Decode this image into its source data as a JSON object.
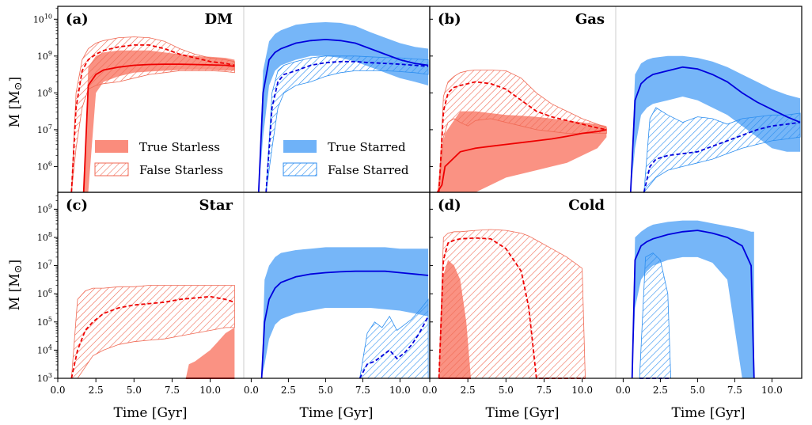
{
  "figure": {
    "ylabel": "M [M",
    "ylabel_sub": "⊙",
    "ylabel_close": "]",
    "xlabel": "Time [Gyr]"
  },
  "legend": {
    "true_starless": "True Starless",
    "false_starless": "False Starless",
    "true_starred": "True Starred",
    "false_starred": "False Starred"
  },
  "colors": {
    "red_line": "#ee0000",
    "red_fill": "#fa8c7c",
    "blue_line": "#0000dd",
    "blue_fill": "#6fb2f8",
    "divider": "#cccccc"
  },
  "chart_data": [
    {
      "type": "area",
      "panel": "a",
      "label": "(a)",
      "title": "DM",
      "y_exponent_range": [
        5.3,
        10.35
      ],
      "y_ticks": [
        6,
        7,
        8,
        9,
        10
      ],
      "starless": {
        "x_range": [
          0,
          12.2
        ],
        "x_ticks": [
          0.0,
          2.5,
          5.0,
          7.5,
          10.0
        ],
        "true_x": [
          1.7,
          2.0,
          2.5,
          3,
          4,
          5,
          6,
          7,
          8,
          9,
          10,
          11,
          11.6
        ],
        "true_median": [
          5.3,
          8.2,
          8.5,
          8.62,
          8.7,
          8.75,
          8.77,
          8.78,
          8.78,
          8.77,
          8.76,
          8.75,
          8.72
        ],
        "true_low": [
          5.3,
          5.3,
          8.0,
          8.3,
          8.45,
          8.55,
          8.58,
          8.6,
          8.62,
          8.62,
          8.62,
          8.6,
          8.6
        ],
        "true_high": [
          5.3,
          8.7,
          9.0,
          9.1,
          9.15,
          9.15,
          9.15,
          9.1,
          9.05,
          9.0,
          8.98,
          8.95,
          8.9
        ],
        "false_x": [
          0.9,
          1.2,
          1.6,
          2.0,
          2.5,
          3,
          4,
          5,
          6,
          7,
          8,
          9,
          10,
          11,
          11.6
        ],
        "false_median": [
          5.3,
          7.6,
          8.6,
          8.9,
          9.05,
          9.15,
          9.25,
          9.3,
          9.3,
          9.2,
          9.05,
          8.95,
          8.85,
          8.8,
          8.75
        ],
        "false_low": [
          5.3,
          6.5,
          7.6,
          8.1,
          8.2,
          8.25,
          8.3,
          8.4,
          8.5,
          8.55,
          8.6,
          8.6,
          8.6,
          8.58,
          8.55
        ],
        "false_high": [
          5.3,
          8.0,
          8.9,
          9.2,
          9.35,
          9.42,
          9.5,
          9.52,
          9.5,
          9.4,
          9.2,
          9.05,
          8.95,
          8.9,
          8.85
        ]
      },
      "starred": {
        "x_range": [
          -0.5,
          12.0
        ],
        "x_ticks": [
          0.0,
          2.5,
          5.0,
          7.5,
          10.0
        ],
        "true_x": [
          0.5,
          0.8,
          1.2,
          1.6,
          2.0,
          3,
          4,
          5,
          6,
          7,
          8,
          9,
          10,
          11,
          11.9
        ],
        "true_median": [
          5.3,
          8.0,
          8.9,
          9.1,
          9.2,
          9.35,
          9.42,
          9.45,
          9.42,
          9.35,
          9.2,
          9.05,
          8.9,
          8.8,
          8.75
        ],
        "true_low": [
          5.3,
          6.8,
          8.2,
          8.6,
          8.75,
          8.9,
          9.0,
          9.0,
          8.95,
          8.85,
          8.7,
          8.55,
          8.4,
          8.3,
          8.2
        ],
        "true_high": [
          5.3,
          8.6,
          9.4,
          9.6,
          9.7,
          9.85,
          9.9,
          9.92,
          9.9,
          9.82,
          9.65,
          9.5,
          9.35,
          9.25,
          9.2
        ],
        "false_x": [
          1.0,
          1.4,
          1.8,
          2.2,
          3,
          4,
          5,
          6,
          7,
          8,
          9,
          10,
          11,
          11.9
        ],
        "false_median": [
          5.3,
          7.6,
          8.3,
          8.5,
          8.6,
          8.75,
          8.82,
          8.85,
          8.85,
          8.82,
          8.8,
          8.78,
          8.75,
          8.72
        ],
        "false_low": [
          5.3,
          6.5,
          7.6,
          8.0,
          8.2,
          8.3,
          8.45,
          8.55,
          8.6,
          8.6,
          8.6,
          8.58,
          8.55,
          8.5
        ],
        "false_high": [
          5.3,
          8.0,
          8.6,
          8.75,
          8.85,
          8.95,
          9.0,
          9.0,
          9.0,
          8.98,
          8.96,
          8.95,
          8.92,
          8.9
        ]
      }
    },
    {
      "type": "area",
      "panel": "b",
      "label": "(b)",
      "title": "Gas",
      "y_exponent_range": [
        5.3,
        10.35
      ],
      "y_ticks": [
        6,
        7,
        8,
        9,
        10
      ],
      "starless": {
        "x_range": [
          0,
          12.2
        ],
        "x_ticks": [
          0.0,
          2.5,
          5.0,
          7.5,
          10.0
        ],
        "true_x": [
          0.5,
          0.8,
          1.0,
          2.0,
          3,
          4,
          5,
          6,
          7,
          8,
          9,
          10,
          11,
          11.6
        ],
        "true_median": [
          5.3,
          5.5,
          6.0,
          6.4,
          6.5,
          6.55,
          6.6,
          6.65,
          6.7,
          6.75,
          6.82,
          6.9,
          6.95,
          7.0
        ],
        "true_low": [
          5.3,
          5.3,
          5.3,
          5.3,
          5.3,
          5.5,
          5.7,
          5.8,
          5.9,
          6.0,
          6.1,
          6.3,
          6.5,
          6.8
        ],
        "true_high": [
          5.3,
          6.5,
          6.9,
          7.5,
          7.5,
          7.45,
          7.4,
          7.38,
          7.35,
          7.3,
          7.25,
          7.2,
          7.15,
          7.1
        ],
        "false_x": [
          0.6,
          0.9,
          1.2,
          1.6,
          2.0,
          2.5,
          3,
          4,
          5,
          6,
          7,
          8,
          9,
          10,
          11,
          11.6
        ],
        "false_median": [
          5.3,
          7.5,
          8.0,
          8.15,
          8.2,
          8.25,
          8.3,
          8.25,
          8.1,
          7.8,
          7.5,
          7.35,
          7.25,
          7.15,
          7.05,
          7.0
        ],
        "false_low": [
          5.3,
          6.8,
          7.2,
          7.3,
          7.2,
          7.1,
          7.25,
          7.3,
          7.2,
          7.1,
          7.0,
          6.95,
          6.9,
          6.9,
          6.9,
          6.9
        ],
        "false_high": [
          5.3,
          7.9,
          8.3,
          8.45,
          8.55,
          8.6,
          8.62,
          8.62,
          8.6,
          8.4,
          8.0,
          7.7,
          7.5,
          7.3,
          7.15,
          7.05
        ]
      },
      "starred": {
        "x_range": [
          -0.5,
          12.0
        ],
        "x_ticks": [
          0.0,
          2.5,
          5.0,
          7.5,
          10.0
        ],
        "true_x": [
          0.5,
          0.8,
          1.2,
          1.6,
          2.0,
          3,
          4,
          5,
          6,
          7,
          8,
          9,
          10,
          11,
          11.9
        ],
        "true_median": [
          5.3,
          7.8,
          8.25,
          8.4,
          8.5,
          8.6,
          8.7,
          8.65,
          8.5,
          8.3,
          8.0,
          7.75,
          7.55,
          7.35,
          7.2
        ],
        "true_low": [
          5.3,
          6.5,
          7.4,
          7.6,
          7.7,
          7.8,
          7.9,
          7.8,
          7.6,
          7.4,
          7.1,
          6.8,
          6.5,
          6.4,
          6.4
        ],
        "true_high": [
          5.3,
          8.5,
          8.8,
          8.9,
          8.95,
          9.0,
          9.0,
          8.95,
          8.85,
          8.7,
          8.5,
          8.3,
          8.1,
          7.95,
          7.85
        ],
        "false_x": [
          1.4,
          1.8,
          2.2,
          3,
          4,
          5,
          6,
          7,
          8,
          9,
          10,
          11,
          11.9
        ],
        "false_median": [
          5.3,
          6.0,
          6.2,
          6.3,
          6.35,
          6.4,
          6.55,
          6.7,
          6.85,
          7.0,
          7.1,
          7.15,
          7.2
        ],
        "false_low": [
          5.3,
          5.5,
          5.7,
          5.9,
          6.0,
          6.1,
          6.2,
          6.35,
          6.5,
          6.6,
          6.7,
          6.75,
          6.8
        ],
        "false_high": [
          5.3,
          7.3,
          7.6,
          7.4,
          7.2,
          7.35,
          7.3,
          7.15,
          7.3,
          7.35,
          7.4,
          7.4,
          7.45
        ]
      }
    },
    {
      "type": "area",
      "panel": "c",
      "label": "(c)",
      "title": "Star",
      "y_exponent_range": [
        3,
        9.6
      ],
      "y_ticks": [
        3,
        4,
        5,
        6,
        7,
        8,
        9
      ],
      "starless": {
        "x_range": [
          0,
          12.2
        ],
        "x_ticks": [
          0.0,
          2.5,
          5.0,
          7.5,
          10.0
        ],
        "true_x": [
          8.4,
          8.6,
          9,
          9.5,
          10,
          10.5,
          11,
          11.6
        ],
        "true_median": [
          3,
          3,
          3,
          3,
          3,
          3,
          3,
          3
        ],
        "true_low": [
          3,
          3,
          3,
          3,
          3,
          3,
          3,
          3
        ],
        "true_high": [
          3,
          3.5,
          3.6,
          3.8,
          4.0,
          4.3,
          4.6,
          4.8
        ],
        "false_x": [
          0.9,
          1.3,
          1.8,
          2.3,
          3,
          4,
          5,
          6,
          7,
          8,
          9,
          10,
          11,
          11.6
        ],
        "false_median": [
          3,
          4.0,
          4.7,
          5.0,
          5.3,
          5.5,
          5.6,
          5.65,
          5.7,
          5.8,
          5.85,
          5.9,
          5.8,
          5.7
        ],
        "false_low": [
          3,
          3,
          3.4,
          3.8,
          4.0,
          4.2,
          4.3,
          4.35,
          4.4,
          4.5,
          4.6,
          4.7,
          4.8,
          4.8
        ],
        "false_high": [
          3,
          5.8,
          6.1,
          6.2,
          6.2,
          6.25,
          6.25,
          6.3,
          6.3,
          6.3,
          6.3,
          6.3,
          6.3,
          6.3
        ]
      },
      "starred": {
        "x_range": [
          -0.5,
          12.0
        ],
        "x_ticks": [
          0.0,
          2.5,
          5.0,
          7.5,
          10.0
        ],
        "true_x": [
          0.7,
          0.9,
          1.2,
          1.6,
          2.0,
          3,
          4,
          5,
          6,
          7,
          8,
          9,
          10,
          11,
          11.9
        ],
        "true_median": [
          3,
          5.0,
          5.8,
          6.2,
          6.4,
          6.6,
          6.7,
          6.75,
          6.78,
          6.8,
          6.8,
          6.8,
          6.75,
          6.7,
          6.65
        ],
        "true_low": [
          3,
          3.5,
          4.4,
          4.9,
          5.1,
          5.3,
          5.4,
          5.5,
          5.5,
          5.5,
          5.5,
          5.45,
          5.4,
          5.3,
          5.2
        ],
        "true_high": [
          3,
          6.5,
          7.0,
          7.3,
          7.45,
          7.55,
          7.6,
          7.65,
          7.65,
          7.65,
          7.65,
          7.65,
          7.6,
          7.6,
          7.6
        ],
        "false_x": [
          7.3,
          7.8,
          8.3,
          8.8,
          9.3,
          9.8,
          10.3,
          10.8,
          11.3,
          11.9
        ],
        "false_median": [
          3,
          3.5,
          3.6,
          3.8,
          4.0,
          3.7,
          3.9,
          4.2,
          4.6,
          5.2
        ],
        "false_low": [
          3,
          3,
          3,
          3,
          3,
          3,
          3,
          3,
          3,
          3
        ],
        "false_high": [
          3,
          4.6,
          5.0,
          4.8,
          5.2,
          4.7,
          4.9,
          5.1,
          5.4,
          5.8
        ]
      }
    },
    {
      "type": "area",
      "panel": "d",
      "label": "(d)",
      "title": "Cold",
      "y_exponent_range": [
        3,
        9.6
      ],
      "y_ticks": [
        3,
        4,
        5,
        6,
        7,
        8,
        9
      ],
      "starless": {
        "x_range": [
          0,
          12.2
        ],
        "x_ticks": [
          0.0,
          2.5,
          5.0,
          7.5,
          10.0
        ],
        "true_x": [
          0.6,
          0.8,
          1.2,
          1.6,
          2.0,
          2.4,
          2.7
        ],
        "true_median": [
          3,
          3,
          3,
          3,
          3,
          3,
          3
        ],
        "true_low": [
          3,
          3,
          3,
          3,
          3,
          3,
          3
        ],
        "true_high": [
          3,
          6.5,
          7.2,
          7.0,
          6.5,
          5.0,
          3
        ],
        "false_x": [
          0.6,
          0.9,
          1.2,
          1.6,
          2.0,
          3,
          4,
          5,
          6,
          6.5,
          7,
          8,
          9,
          10,
          10.2
        ],
        "false_median": [
          3,
          7.2,
          7.8,
          7.9,
          7.95,
          7.98,
          7.95,
          7.6,
          6.8,
          5.5,
          3,
          3,
          3,
          3,
          3
        ],
        "false_low": [
          3,
          3,
          3,
          3,
          3,
          3,
          3,
          3,
          3,
          3,
          3,
          3,
          3,
          3,
          3
        ],
        "false_high": [
          3,
          8.0,
          8.15,
          8.2,
          8.2,
          8.25,
          8.28,
          8.25,
          8.15,
          8.05,
          7.9,
          7.6,
          7.3,
          6.9,
          3
        ]
      },
      "starred": {
        "x_range": [
          -0.5,
          12.0
        ],
        "x_ticks": [
          0.0,
          2.5,
          5.0,
          7.5,
          10.0
        ],
        "true_x": [
          0.6,
          0.8,
          1.2,
          1.6,
          2.0,
          3,
          4,
          5,
          6,
          7,
          8,
          8.6,
          8.8
        ],
        "true_median": [
          3,
          7.2,
          7.7,
          7.85,
          7.95,
          8.1,
          8.2,
          8.25,
          8.15,
          8.0,
          7.7,
          7.0,
          3
        ],
        "true_low": [
          3,
          5.5,
          6.5,
          6.8,
          7.0,
          7.2,
          7.3,
          7.3,
          7.1,
          6.5,
          3,
          3,
          3
        ],
        "true_high": [
          3,
          8.0,
          8.2,
          8.35,
          8.45,
          8.55,
          8.6,
          8.6,
          8.5,
          8.4,
          8.3,
          8.2,
          8.2
        ],
        "false_x": [
          1.1,
          1.5,
          2.0,
          2.5,
          3.0,
          3.2
        ],
        "false_median": [
          3,
          3,
          3,
          3,
          3,
          3
        ],
        "false_low": [
          3,
          3,
          3,
          3,
          3,
          3
        ],
        "false_high": [
          3,
          7.3,
          7.45,
          7.2,
          6.0,
          3
        ]
      }
    }
  ]
}
